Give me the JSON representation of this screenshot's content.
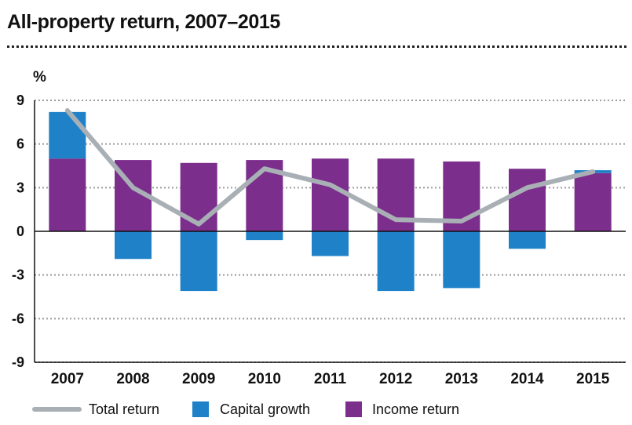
{
  "chart_data": {
    "type": "bar",
    "title": "All-property return, 2007–2015",
    "ylabel": "%",
    "xlabel": "",
    "ylim": [
      -9,
      9
    ],
    "yticks": [
      "9",
      "6",
      "3",
      "0",
      "-3",
      "-6",
      "-9"
    ],
    "ytick_values": [
      9,
      6,
      3,
      0,
      -3,
      -6,
      -9
    ],
    "categories": [
      "2007",
      "2008",
      "2009",
      "2010",
      "2011",
      "2012",
      "2013",
      "2014",
      "2015"
    ],
    "stacked": true,
    "grid": true,
    "series": [
      {
        "name": "Income return",
        "kind": "bar",
        "color": "#7b2e8c",
        "values": [
          5.0,
          4.9,
          4.7,
          4.9,
          5.0,
          5.0,
          4.8,
          4.3,
          4.0
        ]
      },
      {
        "name": "Capital growth",
        "kind": "bar",
        "color": "#1f82c8",
        "values": [
          3.2,
          -1.9,
          -4.1,
          -0.6,
          -1.7,
          -4.1,
          -3.9,
          -1.2,
          0.2
        ]
      },
      {
        "name": "Total return",
        "kind": "line",
        "color": "#a9b0b5",
        "values": [
          8.3,
          3.0,
          0.5,
          4.3,
          3.2,
          0.8,
          0.7,
          3.0,
          4.1
        ]
      }
    ],
    "legend": {
      "position": "bottom",
      "entries": [
        "Total return",
        "Capital growth",
        "Income return"
      ]
    }
  }
}
